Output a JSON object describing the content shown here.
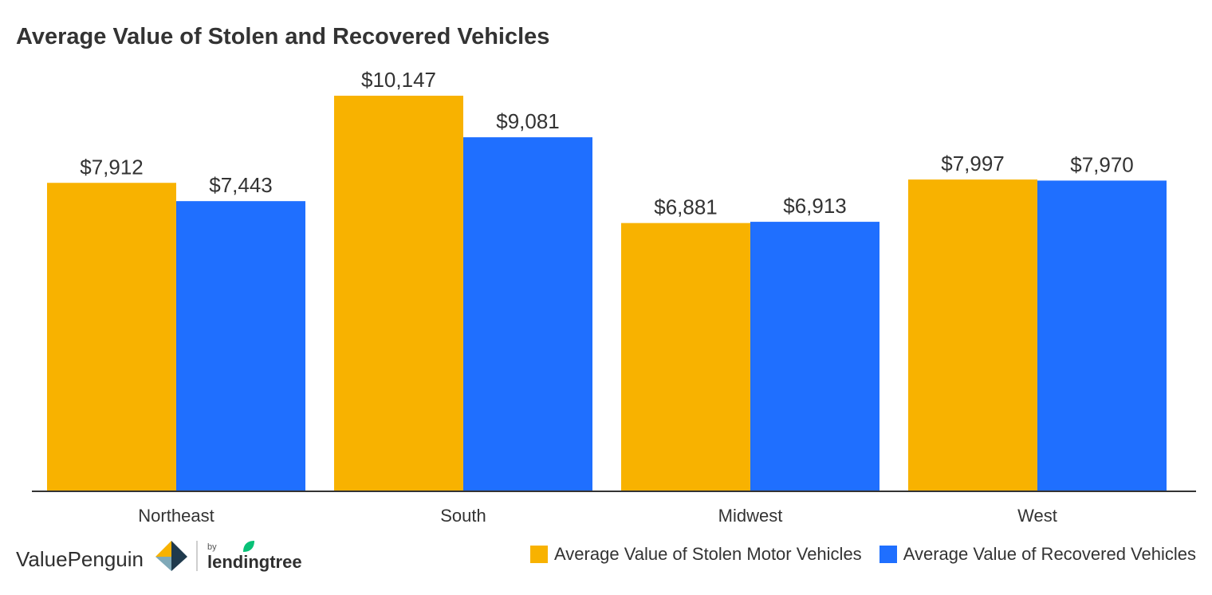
{
  "title": "Average Value of Stolen and Recovered Vehicles",
  "chart_data": {
    "type": "bar",
    "title": "Average Value of Stolen and Recovered Vehicles",
    "categories": [
      "Northeast",
      "South",
      "Midwest",
      "West"
    ],
    "series": [
      {
        "name": "Average Value of Stolen Motor Vehicles",
        "color": "#f8b200",
        "values": [
          7912,
          10147,
          6881,
          7997
        ],
        "labels": [
          "$7,912",
          "$10,147",
          "$6,881",
          "$7,997"
        ]
      },
      {
        "name": "Average Value of Recovered Vehicles",
        "color": "#1f6fff",
        "values": [
          7443,
          9081,
          6913,
          7970
        ],
        "labels": [
          "$7,443",
          "$9,081",
          "$6,913",
          "$7,970"
        ]
      }
    ],
    "xlabel": "",
    "ylabel": "",
    "ylim": [
      0,
      10147
    ],
    "grid": false,
    "legend": "bottom-right"
  },
  "brand": {
    "name": "ValuePenguin",
    "by": "by",
    "partner": "lendingtree"
  }
}
